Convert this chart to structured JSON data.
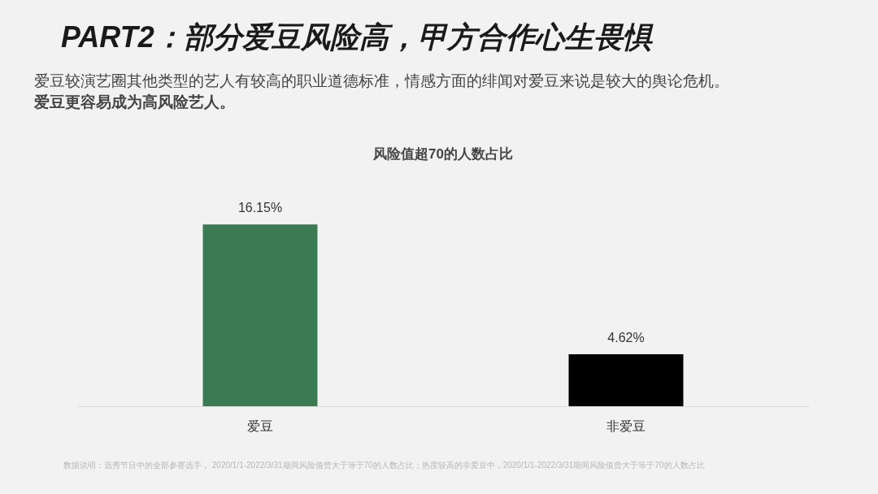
{
  "chart_data": {
    "type": "bar",
    "title": "PART2：部分爱豆风险高，甲方合作心生畏惧",
    "subtitle": [
      "爱豆较演艺圈其他类型的艺人有较高的职业道德标准，情感方面的绯闻对爱豆来说是较大的舆论危机。",
      "爱豆更容易成为高风险艺人。"
    ],
    "annotations": [
      "风险值超70的人数占比",
      "数据说明：选秀节目中的全部参赛选手，  2020/1/1-2022/3/31期间风险值曾大于等于70的人数占比；热度较高的非爱豆中，2020/1/1-2022/3/31期间风险值曾大于等于70的人数占比"
    ],
    "categories": [
      "爱豆",
      "非爱豆"
    ],
    "values": [
      16.15,
      4.62
    ],
    "colors": [
      "#3a7b54",
      "#000000"
    ],
    "value_labels": [
      "16.15%",
      "4.62%"
    ],
    "grid": false,
    "legend": false
  }
}
